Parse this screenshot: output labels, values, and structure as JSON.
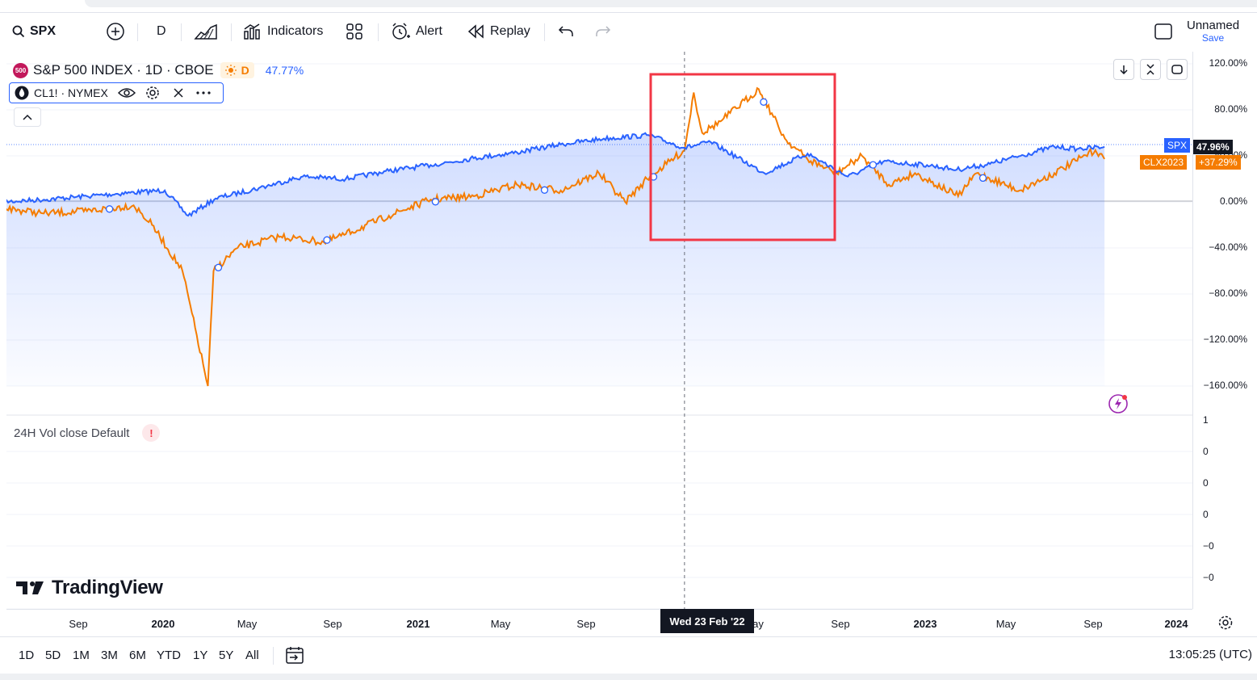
{
  "toolbar": {
    "symbol": "SPX",
    "interval": "D",
    "indicators_label": "Indicators",
    "alert_label": "Alert",
    "replay_label": "Replay",
    "layout_name": "Unnamed",
    "save_label": "Save"
  },
  "legend": {
    "main_badge": "500",
    "main_title": "S&P 500 INDEX · 1D · CBOE",
    "main_d": "D",
    "main_pct": "47.77%",
    "compare_symbol": "CL1! · NYMEX"
  },
  "volume_pane": {
    "title": "24H Vol close Default",
    "warn": "!",
    "axis_labels": [
      "1",
      "0",
      "0",
      "0",
      "−0",
      "−0"
    ]
  },
  "price_axis_labels": [
    "120.00%",
    "80.00%",
    "40.00%",
    "0.00%",
    "−40.00%",
    "−80.00%",
    "−120.00%",
    "−160.00%"
  ],
  "price_tags": {
    "spx_name": "SPX",
    "spx_value": "47.96%",
    "clx_name": "CLX2023",
    "clx_value": "+37.29%"
  },
  "time_axis": {
    "labels": [
      {
        "text": "Sep",
        "bold": false
      },
      {
        "text": "2020",
        "bold": true
      },
      {
        "text": "May",
        "bold": false
      },
      {
        "text": "Sep",
        "bold": false
      },
      {
        "text": "2021",
        "bold": true
      },
      {
        "text": "May",
        "bold": false
      },
      {
        "text": "Sep",
        "bold": false
      },
      {
        "text": "ay",
        "bold": false
      },
      {
        "text": "Sep",
        "bold": false
      },
      {
        "text": "2023",
        "bold": true
      },
      {
        "text": "May",
        "bold": false
      },
      {
        "text": "Sep",
        "bold": false
      },
      {
        "text": "2024",
        "bold": true
      }
    ],
    "crosshair_date": "Wed 23 Feb '22"
  },
  "ranges": [
    "1D",
    "5D",
    "1M",
    "3M",
    "6M",
    "YTD",
    "1Y",
    "5Y",
    "All"
  ],
  "clock": "13:05:25 (UTC)",
  "branding": "TradingView",
  "colors": {
    "spx_line": "#2962ff",
    "cl_line": "#f57c00",
    "highlight_box": "#f23645",
    "area_fill": "#2962ff"
  },
  "chart_data": {
    "type": "line",
    "title": "S&P 500 INDEX · 1D · CBOE",
    "y_unit": "percent change",
    "ylim": [
      -175,
      125
    ],
    "x_range": [
      "2019-07-01",
      "2024-02-01"
    ],
    "series": [
      {
        "name": "S&P 500 INDEX",
        "x": [
          "2019-07-01",
          "2019-09-01",
          "2019-11-01",
          "2020-01-01",
          "2020-02-19",
          "2020-03-23",
          "2020-05-01",
          "2020-07-01",
          "2020-09-01",
          "2020-11-01",
          "2021-01-01",
          "2021-03-01",
          "2021-05-01",
          "2021-07-01",
          "2021-09-01",
          "2021-11-01",
          "2022-01-03",
          "2022-02-23",
          "2022-04-01",
          "2022-06-16",
          "2022-08-16",
          "2022-10-12",
          "2022-12-01",
          "2023-02-01",
          "2023-03-15",
          "2023-05-01",
          "2023-07-31",
          "2023-09-01",
          "2023-10-10"
        ],
        "values": [
          0,
          2,
          5,
          8,
          10,
          -12,
          3,
          12,
          22,
          20,
          27,
          32,
          38,
          43,
          50,
          55,
          58,
          47,
          52,
          25,
          42,
          22,
          35,
          32,
          28,
          33,
          48,
          46,
          47.96
        ]
      },
      {
        "name": "CL1! · NYMEX",
        "x": [
          "2019-07-01",
          "2019-09-01",
          "2019-11-01",
          "2020-01-06",
          "2020-02-01",
          "2020-03-15",
          "2020-04-20",
          "2020-04-28",
          "2020-06-01",
          "2020-08-01",
          "2020-10-01",
          "2020-11-01",
          "2021-01-01",
          "2021-03-01",
          "2021-05-01",
          "2021-07-01",
          "2021-09-01",
          "2021-10-25",
          "2021-12-01",
          "2022-01-01",
          "2022-02-23",
          "2022-03-08",
          "2022-03-20",
          "2022-04-15",
          "2022-06-08",
          "2022-07-15",
          "2022-08-16",
          "2022-09-26",
          "2022-11-01",
          "2022-12-09",
          "2023-01-15",
          "2023-03-17",
          "2023-04-12",
          "2023-06-12",
          "2023-07-31",
          "2023-09-27",
          "2023-10-10"
        ],
        "values": [
          -5,
          -10,
          -8,
          -3,
          -20,
          -60,
          -160,
          -60,
          -40,
          -30,
          -35,
          -28,
          -12,
          2,
          5,
          15,
          10,
          25,
          0,
          20,
          45,
          95,
          60,
          70,
          98,
          55,
          37,
          25,
          40,
          15,
          25,
          5,
          25,
          10,
          25,
          45,
          37.29
        ]
      }
    ],
    "crosshair_date": "2022-02-23"
  }
}
